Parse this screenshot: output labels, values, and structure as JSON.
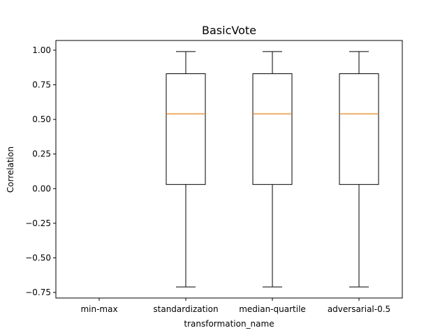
{
  "chart_data": {
    "type": "boxplot",
    "title": "BasicVote",
    "xlabel": "transformation_name",
    "ylabel": "Correlation",
    "categories": [
      "min-max",
      "standardization",
      "median-quartile",
      "adversarial-0.5"
    ],
    "boxes": [
      null,
      {
        "whisker_low": -0.71,
        "q1": 0.03,
        "median": 0.54,
        "q3": 0.83,
        "whisker_high": 0.99
      },
      {
        "whisker_low": -0.71,
        "q1": 0.03,
        "median": 0.54,
        "q3": 0.83,
        "whisker_high": 0.99
      },
      {
        "whisker_low": -0.71,
        "q1": 0.03,
        "median": 0.54,
        "q3": 0.83,
        "whisker_high": 0.99
      }
    ],
    "yticks": [
      1.0,
      0.75,
      0.5,
      0.25,
      0.0,
      -0.25,
      -0.5,
      -0.75
    ],
    "ytick_labels": [
      "1.00",
      "0.75",
      "0.50",
      "0.25",
      "0.00",
      "−0.25",
      "−0.50",
      "−0.75"
    ],
    "ylim": [
      -0.79,
      1.07
    ],
    "grid": false,
    "colors": {
      "box": "#000000",
      "median": "#ff7f0e"
    }
  }
}
